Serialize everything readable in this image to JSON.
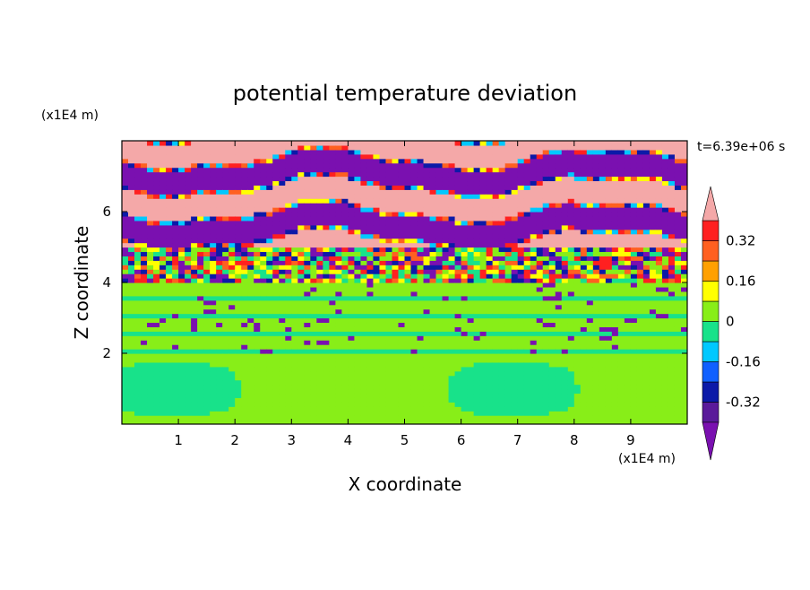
{
  "chart_data": {
    "type": "heatmap",
    "title": "potential temperature deviation",
    "xlabel": "X coordinate",
    "ylabel": "Z coordinate",
    "x_unit": "(x1E4 m)",
    "y_unit": "(x1E4 m)",
    "time_label": "t=6.39e+06 s",
    "xlim": [
      0,
      10
    ],
    "ylim": [
      0,
      8
    ],
    "x_ticks": [
      "1",
      "2",
      "3",
      "4",
      "5",
      "6",
      "7",
      "8",
      "9"
    ],
    "y_ticks": [
      "2",
      "4",
      "6"
    ],
    "colorbar": {
      "levels": [
        -0.4,
        -0.32,
        -0.24,
        -0.16,
        -0.08,
        0,
        0.08,
        0.16,
        0.24,
        0.32,
        0.4
      ],
      "tick_labels": [
        "0.32",
        "0.16",
        "0",
        "-0.16",
        "-0.32"
      ],
      "tick_values": [
        0.32,
        0.16,
        0,
        -0.16,
        -0.32
      ],
      "under_color": "#7a10b0",
      "over_color": "#f4a8a8",
      "colors": [
        "#5a1a9a",
        "#0c1aa8",
        "#1060ff",
        "#00c8ff",
        "#18e28a",
        "#88ee18",
        "#ffff00",
        "#ffa000",
        "#ff6020",
        "#ff2020"
      ]
    },
    "colors": {
      "purple": "#7a10b0",
      "pink": "#f4a8a8",
      "green": "#88ee18",
      "teal": "#18e28a"
    }
  }
}
